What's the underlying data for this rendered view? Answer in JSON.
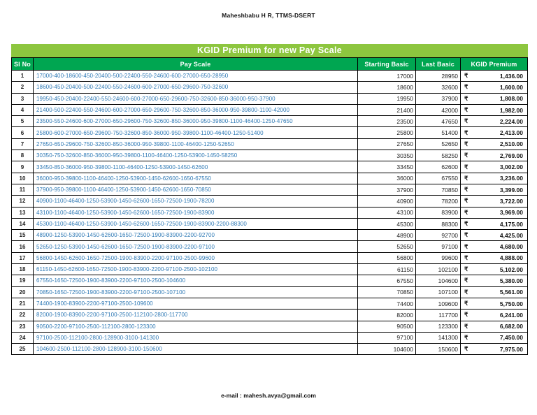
{
  "page": {
    "author_header": "Maheshbabu H R, TTMS-DSERT",
    "footer_email": "e-mail : mahesh.avya@gmail.com"
  },
  "table": {
    "title": "KGID Premium for new Pay Scale",
    "columns": [
      "Sl No",
      "Pay Scale",
      "Starting Basic",
      "Last Basic",
      "KGID Premium"
    ],
    "currency_symbol": "₹",
    "colors": {
      "title_bar_green": "#8dc63f",
      "header_row_green": "#00a651",
      "pay_scale_blue": "#2e79b5",
      "border_black": "#000000"
    },
    "rows": [
      {
        "sl_no": "1",
        "pay_scale": "17000-400-18600-450-20400-500-22400-550-24600-600-27000-650-28950",
        "starting_basic": "17000",
        "last_basic": "28950",
        "premium": "1,436.00"
      },
      {
        "sl_no": "2",
        "pay_scale": "18600-450-20400-500-22400-550-24600-600-27000-650-29600-750-32600",
        "starting_basic": "18600",
        "last_basic": "32600",
        "premium": "1,600.00"
      },
      {
        "sl_no": "3",
        "pay_scale": "19950-450-20400-22400-550-24600-600-27000-650-29600-750-32600-850-36000-950-37900",
        "starting_basic": "19950",
        "last_basic": "37900",
        "premium": "1,808.00"
      },
      {
        "sl_no": "4",
        "pay_scale": "21400-500-22400-550-24600-600-27000-650-29600-750-32600-850-36000-950-39800-1100-42000",
        "starting_basic": "21400",
        "last_basic": "42000",
        "premium": "1,982.00"
      },
      {
        "sl_no": "5",
        "pay_scale": "23500-550-24600-600-27000-650-29600-750-32600-850-36000-950-39800-1100-46400-1250-47650",
        "starting_basic": "23500",
        "last_basic": "47650",
        "premium": "2,224.00"
      },
      {
        "sl_no": "6",
        "pay_scale": "25800-600-27000-650-29600-750-32600-850-36000-950-39800-1100-46400-1250-51400",
        "starting_basic": "25800",
        "last_basic": "51400",
        "premium": "2,413.00"
      },
      {
        "sl_no": "7",
        "pay_scale": "27650-650-29600-750-32600-850-36000-950-39800-1100-46400-1250-52650",
        "starting_basic": "27650",
        "last_basic": "52650",
        "premium": "2,510.00"
      },
      {
        "sl_no": "8",
        "pay_scale": "30350-750-32600-850-36000-950-39800-1100-46400-1250-53900-1450-58250",
        "starting_basic": "30350",
        "last_basic": "58250",
        "premium": "2,769.00"
      },
      {
        "sl_no": "9",
        "pay_scale": "33450-850-36000-950-39800-1100-46400-1250-53900-1450-62600",
        "starting_basic": "33450",
        "last_basic": "62600",
        "premium": "3,002.00"
      },
      {
        "sl_no": "10",
        "pay_scale": "36000-950-39800-1100-46400-1250-53900-1450-62600-1650-67550",
        "starting_basic": "36000",
        "last_basic": "67550",
        "premium": "3,236.00"
      },
      {
        "sl_no": "11",
        "pay_scale": "37900-950-39800-1100-46400-1250-53900-1450-62600-1650-70850",
        "starting_basic": "37900",
        "last_basic": "70850",
        "premium": "3,399.00"
      },
      {
        "sl_no": "12",
        "pay_scale": "40900-1100-46400-1250-53900-1450-62600-1650-72500-1900-78200",
        "starting_basic": "40900",
        "last_basic": "78200",
        "premium": "3,722.00"
      },
      {
        "sl_no": "13",
        "pay_scale": "43100-1100-46400-1250-53900-1450-62600-1650-72500-1900-83900",
        "starting_basic": "43100",
        "last_basic": "83900",
        "premium": "3,969.00"
      },
      {
        "sl_no": "14",
        "pay_scale": "45300-1100-46400-1250-53900-1450-62600-1650-72500-1900-83900-2200-88300",
        "starting_basic": "45300",
        "last_basic": "88300",
        "premium": "4,175.00"
      },
      {
        "sl_no": "15",
        "pay_scale": "48900-1250-53900-1450-62600-1650-72500-1900-83900-2200-92700",
        "starting_basic": "48900",
        "last_basic": "92700",
        "premium": "4,425.00"
      },
      {
        "sl_no": "16",
        "pay_scale": "52650-1250-53900-1450-62600-1650-72500-1900-83900-2200-97100",
        "starting_basic": "52650",
        "last_basic": "97100",
        "premium": "4,680.00"
      },
      {
        "sl_no": "17",
        "pay_scale": "56800-1450-62600-1650-72500-1900-83900-2200-97100-2500-99600",
        "starting_basic": "56800",
        "last_basic": "99600",
        "premium": "4,888.00"
      },
      {
        "sl_no": "18",
        "pay_scale": "61150-1450-62600-1650-72500-1900-83900-2200-97100-2500-102100",
        "starting_basic": "61150",
        "last_basic": "102100",
        "premium": "5,102.00"
      },
      {
        "sl_no": "19",
        "pay_scale": "67550-1650-72500-1900-83900-2200-97100-2500-104600",
        "starting_basic": "67550",
        "last_basic": "104600",
        "premium": "5,380.00"
      },
      {
        "sl_no": "20",
        "pay_scale": "70850-1650-72500-1900-83900-2200-97100-2500-107100",
        "starting_basic": "70850",
        "last_basic": "107100",
        "premium": "5,561.00"
      },
      {
        "sl_no": "21",
        "pay_scale": "74400-1900-83900-2200-97100-2500-109600",
        "starting_basic": "74400",
        "last_basic": "109600",
        "premium": "5,750.00"
      },
      {
        "sl_no": "22",
        "pay_scale": "82000-1900-83900-2200-97100-2500-112100-2800-117700",
        "starting_basic": "82000",
        "last_basic": "117700",
        "premium": "6,241.00"
      },
      {
        "sl_no": "23",
        "pay_scale": "90500-2200-97100-2500-112100-2800-123300",
        "starting_basic": "90500",
        "last_basic": "123300",
        "premium": "6,682.00"
      },
      {
        "sl_no": "24",
        "pay_scale": "97100-2500-112100-2800-128900-3100-141300",
        "starting_basic": "97100",
        "last_basic": "141300",
        "premium": "7,450.00"
      },
      {
        "sl_no": "25",
        "pay_scale": "104600-2500-112100-2800-128900-3100-150600",
        "starting_basic": "104600",
        "last_basic": "150600",
        "premium": "7,975.00"
      }
    ]
  }
}
